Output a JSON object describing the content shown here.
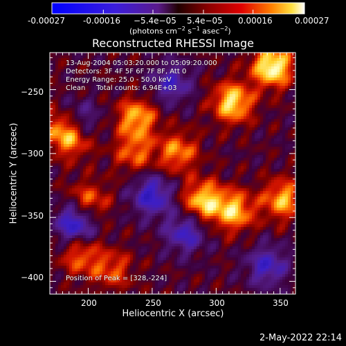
{
  "colorbar": {
    "ticks": [
      "-0.00027",
      "-0.00016",
      "−5.4e−05",
      "5.4e−05",
      "0.00016",
      "0.00027"
    ],
    "tick_values": [
      -0.00027,
      -0.00016,
      -5.4e-05,
      5.4e-05,
      0.00016,
      0.00027
    ],
    "unit_pre": "(photons cm",
    "unit_sup1": "−2",
    "unit_mid1": " s",
    "unit_sup2": "−1",
    "unit_mid2": " asec",
    "unit_sup3": "−2",
    "unit_post": ")",
    "range": [
      -0.00027,
      0.00027
    ]
  },
  "plot": {
    "title": "Reconstructed RHESSI Image",
    "annotations": [
      "13-Aug-2004 05:03:20.000 to 05:09:20.000",
      "Detectors: 3F 4F 5F 6F 7F 8F, Att 0",
      "Energy Range: 25.0 - 50.0 keV",
      "Clean     Total counts: 6.94E+03"
    ],
    "peak_label": "Position of Peak = [328,-224]"
  },
  "footer": {
    "date": "2-May-2022 22:14"
  },
  "colors": {
    "background": "#000000",
    "text": "#ffffff"
  },
  "chart_data": {
    "type": "heatmap",
    "title": "Reconstructed RHESSI Image",
    "xlabel": "Heliocentric X (arcsec)",
    "ylabel": "Heliocentric Y (arcsec)",
    "xlim": [
      170,
      362
    ],
    "ylim": [
      -410,
      -221
    ],
    "x_ticks": [
      200,
      250,
      300,
      350
    ],
    "y_ticks": [
      -250,
      -300,
      -350,
      -400
    ],
    "x_tick_labels": [
      "200",
      "250",
      "300",
      "350"
    ],
    "y_tick_labels": [
      "−250",
      "−300",
      "−350",
      "−400"
    ],
    "colorscale": "rhessi blue-purple-red-yellow-white",
    "grid": false,
    "peak": [
      328,
      -224
    ],
    "hotspots": [
      {
        "x": 344,
        "y": -232,
        "amp": 1.0
      },
      {
        "x": 313,
        "y": -260,
        "amp": 0.85
      },
      {
        "x": 238,
        "y": -272,
        "amp": 0.7
      },
      {
        "x": 180,
        "y": -281,
        "amp": 0.6
      },
      {
        "x": 290,
        "y": -337,
        "amp": 0.8
      },
      {
        "x": 314,
        "y": -345,
        "amp": 0.75
      },
      {
        "x": 352,
        "y": -336,
        "amp": 0.7
      },
      {
        "x": 200,
        "y": -338,
        "amp": 0.55
      },
      {
        "x": 189,
        "y": -289,
        "amp": 0.45
      },
      {
        "x": 219,
        "y": -391,
        "amp": 0.45
      },
      {
        "x": 194,
        "y": -380,
        "amp": 0.5
      },
      {
        "x": 270,
        "y": -299,
        "amp": 0.6
      },
      {
        "x": 236,
        "y": -299,
        "amp": 0.5
      }
    ],
    "coldspots": [
      {
        "x": 190,
        "y": -354,
        "amp": -0.8
      },
      {
        "x": 250,
        "y": -333,
        "amp": -0.7
      },
      {
        "x": 193,
        "y": -275,
        "amp": -0.5
      },
      {
        "x": 265,
        "y": -245,
        "amp": -0.55
      },
      {
        "x": 340,
        "y": -388,
        "amp": -0.6
      },
      {
        "x": 276,
        "y": -362,
        "amp": -0.6
      }
    ]
  }
}
